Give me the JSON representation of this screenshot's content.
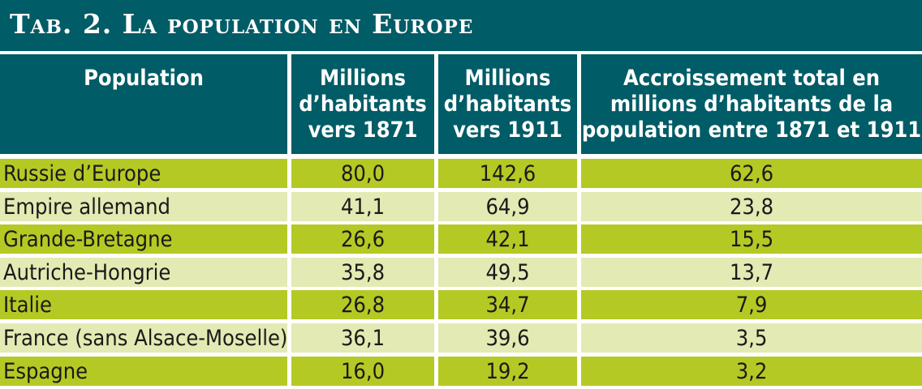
{
  "title": "Tab. 2. La population en Europe",
  "headers": [
    "Population",
    "Millions d’habitants vers 1871",
    "Millions d’habitants vers 1911",
    "Accroissement total en millions d’habitants de la population entre 1871 et 1911"
  ],
  "rows": [
    {
      "name": "Russie d’Europe",
      "v1871": "80,0",
      "v1911": "142,6",
      "increase": "62,6"
    },
    {
      "name": "Empire allemand",
      "v1871": "41,1",
      "v1911": "64,9",
      "increase": "23,8"
    },
    {
      "name": "Grande-Bretagne",
      "v1871": "26,6",
      "v1911": "42,1",
      "increase": "15,5"
    },
    {
      "name": "Autriche-Hongrie",
      "v1871": "35,8",
      "v1911": "49,5",
      "increase": "13,7"
    },
    {
      "name": "Italie",
      "v1871": "26,8",
      "v1911": "34,7",
      "increase": "7,9"
    },
    {
      "name": "France (sans Alsace-Moselle)",
      "v1871": "36,1",
      "v1911": "39,6",
      "increase": "3,5"
    },
    {
      "name": "Espagne",
      "v1871": "16,0",
      "v1911": "19,2",
      "increase": "3,2"
    }
  ],
  "colors": {
    "header_bg": "#005c66",
    "row_dark": "#b5c924",
    "row_light": "#e3eab3"
  }
}
